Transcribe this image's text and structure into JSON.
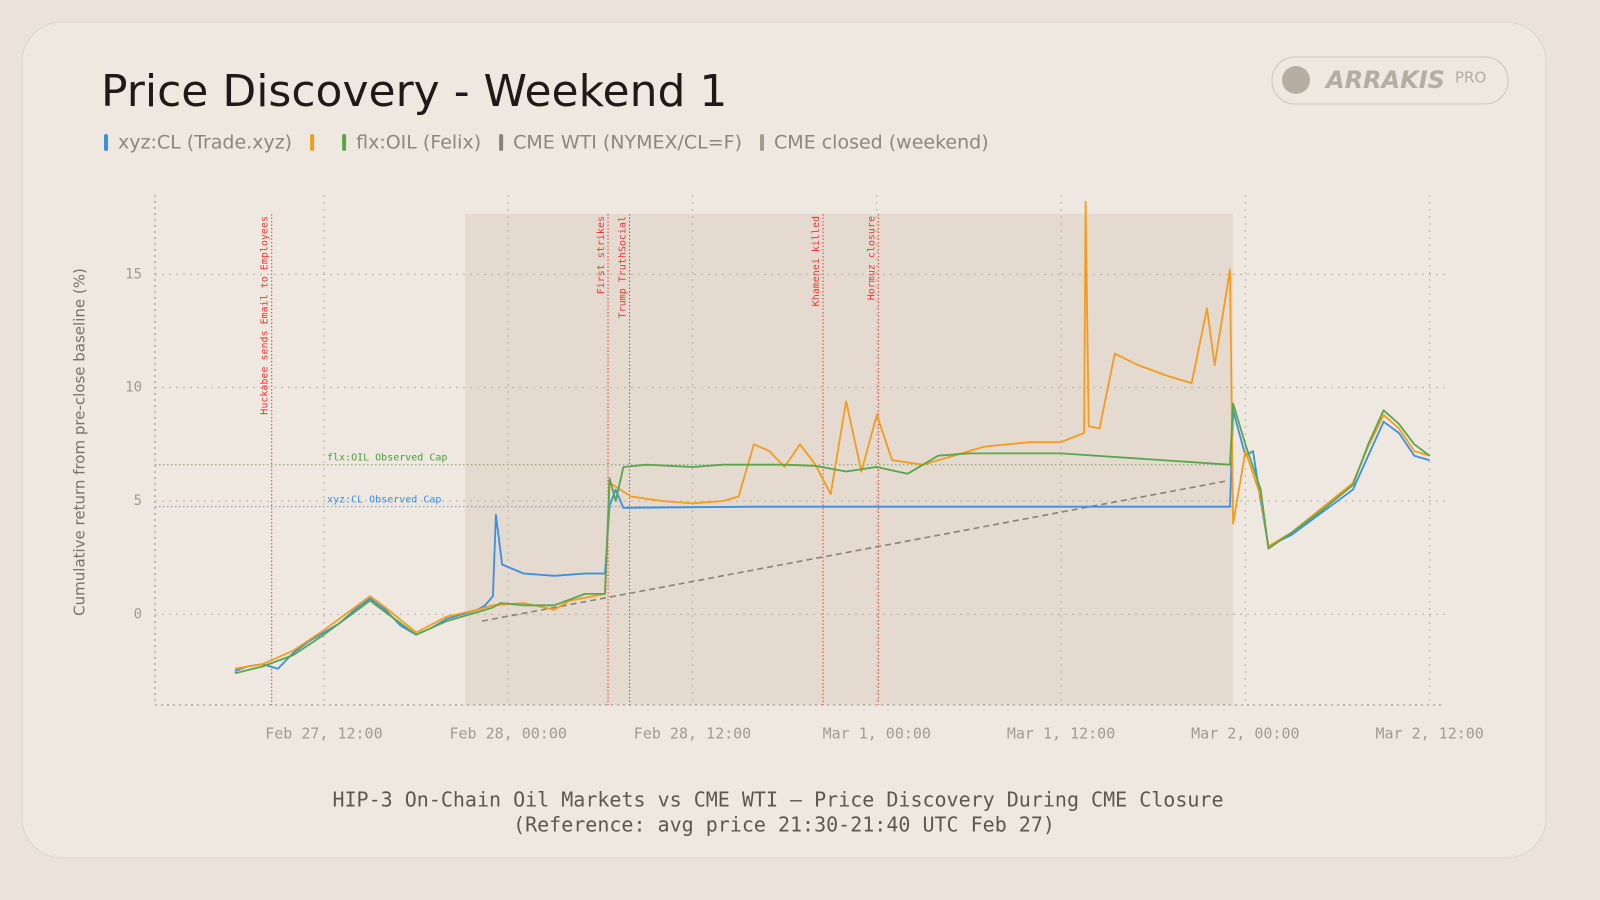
{
  "title": "Price Discovery - Weekend 1",
  "logo": {
    "brand": "ARRAKIS",
    "tier": "PRO"
  },
  "chart_data": {
    "type": "line",
    "ylabel": "Cumulative return from pre-close baseline (%)",
    "caption": [
      "HIP-3 On-Chain Oil Markets vs CME WTI — Price Discovery During CME Closure",
      "(Reference: avg price 21:30-21:40 UTC Feb 27)"
    ],
    "xlim": [
      1,
      85
    ],
    "xticks": [
      {
        "value": 12,
        "label": "Feb 27, 12:00"
      },
      {
        "value": 24,
        "label": "Feb 28, 00:00"
      },
      {
        "value": 36,
        "label": "Feb 28, 12:00"
      },
      {
        "value": 48,
        "label": "Mar 1, 00:00"
      },
      {
        "value": 60,
        "label": "Mar 1, 12:00"
      },
      {
        "value": 72,
        "label": "Mar 2, 00:00"
      },
      {
        "value": 84,
        "label": "Mar 2, 12:00"
      }
    ],
    "ylim": [
      -4,
      18.5
    ],
    "yticks": [
      0,
      5,
      10,
      15
    ],
    "grid": true,
    "closed": {
      "label": "CME closed (weekend)",
      "color": "#a59a8e",
      "x": [
        21.2,
        71.2
      ]
    },
    "series": [
      {
        "name": "xyz:CL (Trade.xyz)",
        "color": "#3b8fe0",
        "x": [
          6.2,
          7,
          8,
          9,
          10,
          11,
          12,
          13,
          14,
          15,
          16,
          17,
          18,
          19,
          20,
          21,
          22,
          22.5,
          23,
          23.2,
          23.6,
          25,
          27,
          29,
          30.3,
          30.6,
          31,
          31.5,
          40,
          71,
          71.2,
          72,
          72.5,
          73,
          73.5,
          75,
          77,
          79,
          80,
          81,
          82,
          83,
          84
        ],
        "values": [
          -2.5,
          -2.3,
          -2.2,
          -2.4,
          -1.7,
          -1.2,
          -0.8,
          -0.4,
          0.2,
          0.7,
          0.2,
          -0.5,
          -0.9,
          -0.6,
          -0.2,
          0,
          0.2,
          0.4,
          0.8,
          4.4,
          2.2,
          1.8,
          1.7,
          1.8,
          1.8,
          4.8,
          5.5,
          4.7,
          4.75,
          4.75,
          9,
          7,
          7.2,
          5,
          3,
          3.5,
          4.5,
          5.5,
          7,
          8.5,
          8,
          7,
          6.8
        ]
      },
      {
        "name": null,
        "color": "#f39c1e",
        "x": [
          6.2,
          8,
          10,
          12,
          14,
          15,
          16,
          18,
          20,
          22,
          23,
          25,
          27,
          28,
          30.3,
          30.6,
          32,
          34,
          36,
          38,
          39,
          40,
          41,
          42,
          43,
          44,
          45,
          46,
          47,
          48,
          49,
          51,
          53,
          55,
          58,
          60,
          61.5,
          61.6,
          61.8,
          62.5,
          63.5,
          65,
          67,
          68.5,
          69.5,
          70,
          71,
          71.2,
          72,
          73,
          73.5,
          75,
          77,
          79,
          80,
          81,
          82,
          83,
          84
        ],
        "values": [
          -2.4,
          -2.2,
          -1.6,
          -0.7,
          0.3,
          0.8,
          0.3,
          -0.8,
          -0.1,
          0.2,
          0.4,
          0.5,
          0.2,
          0.6,
          0.9,
          5.8,
          5.2,
          5.0,
          4.9,
          5.0,
          5.2,
          7.5,
          7.2,
          6.5,
          7.5,
          6.6,
          5.3,
          9.4,
          6.3,
          8.8,
          6.8,
          6.6,
          7.0,
          7.4,
          7.6,
          7.6,
          8.0,
          18.2,
          8.3,
          8.2,
          11.5,
          11.0,
          10.5,
          10.2,
          13.5,
          11,
          15.2,
          4,
          7.2,
          5.2,
          3.0,
          3.6,
          4.7,
          5.8,
          7.4,
          8.8,
          8.2,
          7.2,
          7.0
        ]
      },
      {
        "name": "flx:OIL (Felix)",
        "color": "#5aa64a",
        "x": [
          6.2,
          8,
          10,
          12,
          14,
          15,
          16,
          18,
          20,
          22,
          23,
          23.5,
          25,
          27,
          29,
          30.3,
          30.6,
          31,
          31.5,
          33,
          36,
          38,
          40,
          42,
          44,
          46,
          48,
          50,
          52,
          54,
          60,
          71,
          71.2,
          72,
          73,
          73.5,
          75,
          77,
          79,
          80,
          81,
          82,
          83,
          84
        ],
        "values": [
          -2.6,
          -2.3,
          -1.8,
          -0.9,
          0.1,
          0.6,
          0.1,
          -0.9,
          -0.3,
          0.1,
          0.3,
          0.5,
          0.4,
          0.4,
          0.9,
          0.9,
          6.0,
          5,
          6.5,
          6.6,
          6.5,
          6.6,
          6.6,
          6.6,
          6.55,
          6.3,
          6.5,
          6.2,
          7.0,
          7.1,
          7.1,
          6.6,
          9.3,
          7.5,
          5.5,
          2.9,
          3.6,
          4.6,
          5.7,
          7.5,
          9.0,
          8.4,
          7.5,
          7.0
        ]
      },
      {
        "name": "CME WTI (NYMEX/CL=F)",
        "color": "#8a8178",
        "dash": true,
        "x": [
          22.3,
          70.9
        ],
        "values": [
          -0.3,
          5.9
        ]
      }
    ],
    "caps": [
      {
        "label": "flx:OIL Observed Cap",
        "value": 6.6,
        "color": "#4f9a42"
      },
      {
        "label": "xyz:CL Observed Cap",
        "value": 4.75,
        "color": "#3b8fe0"
      }
    ],
    "events": [
      {
        "label": "Huckabee sends Email to Employees",
        "x": 8.6
      },
      {
        "label": "First strikes",
        "x": 30.5
      },
      {
        "label": "Trump TruthSocial",
        "x": 31.9
      },
      {
        "label": "Khamenei killed",
        "x": 44.5
      },
      {
        "label": "Hormuz closure",
        "x": 48.1
      }
    ],
    "event_color": "#e53935"
  }
}
